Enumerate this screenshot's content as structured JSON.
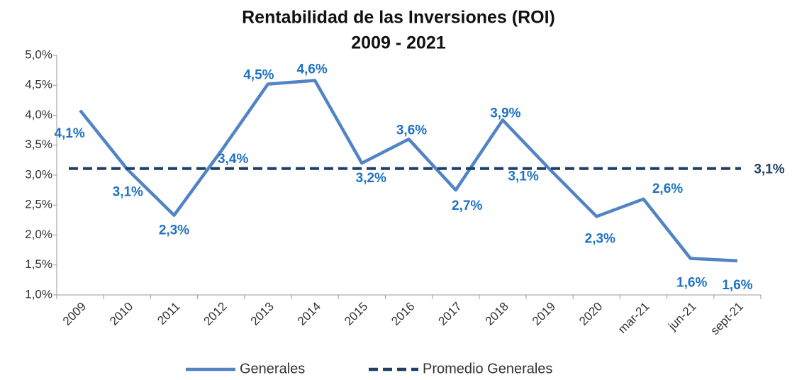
{
  "chart_data": {
    "type": "line",
    "title": "Rentabilidad de las Inversiones (ROI)",
    "subtitle": "2009 - 2021",
    "categories": [
      "2009",
      "2010",
      "2011",
      "2012",
      "2013",
      "2014",
      "2015",
      "2016",
      "2017",
      "2018",
      "2019",
      "2020",
      "mar-21",
      "jun-21",
      "sept-21"
    ],
    "series": [
      {
        "name": "Generales",
        "color": "#5283c4",
        "values": [
          4.08,
          3.1,
          2.33,
          3.4,
          4.52,
          4.58,
          3.2,
          3.6,
          2.75,
          3.92,
          3.1,
          2.31,
          2.6,
          1.61,
          1.57
        ],
        "value_labels": [
          "4,1%",
          "3,1%",
          "2,3%",
          "3,4%",
          "4,5%",
          "4,6%",
          "3,2%",
          "3,6%",
          "2,7%",
          "3,9%",
          "3,1%",
          "2,3%",
          "2,6%",
          "1,6%",
          "1,6%"
        ],
        "label_color": "#1f72c4"
      },
      {
        "name": "Promedio Generales",
        "color": "#1f3f66",
        "dashed": true,
        "values": [
          3.11,
          3.11,
          3.11,
          3.11,
          3.11,
          3.11,
          3.11,
          3.11,
          3.11,
          3.11,
          3.11,
          3.11,
          3.11,
          3.11,
          3.11
        ],
        "end_label": "3,1%"
      }
    ],
    "ylim": [
      1.0,
      5.0
    ],
    "yticks": [
      {
        "value": 1.0,
        "label": "1,0%"
      },
      {
        "value": 1.5,
        "label": "1,5%"
      },
      {
        "value": 2.0,
        "label": "2,0%"
      },
      {
        "value": 2.5,
        "label": "2,5%"
      },
      {
        "value": 3.0,
        "label": "3,0%"
      },
      {
        "value": 3.5,
        "label": "3,5%"
      },
      {
        "value": 4.0,
        "label": "4,0%"
      },
      {
        "value": 4.5,
        "label": "4,5%"
      },
      {
        "value": 5.0,
        "label": "5,0%"
      }
    ],
    "grid": false,
    "legend": "bottom"
  }
}
